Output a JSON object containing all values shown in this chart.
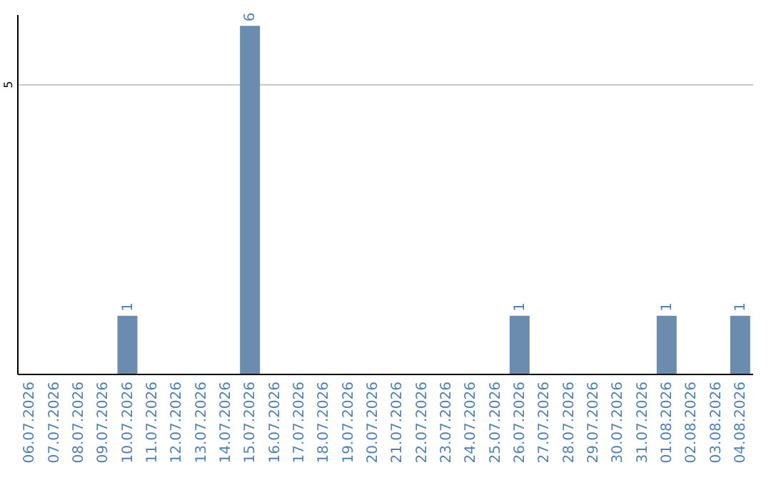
{
  "chart_data": {
    "type": "bar",
    "categories": [
      "06.07.2026",
      "07.07.2026",
      "08.07.2026",
      "09.07.2026",
      "10.07.2026",
      "11.07.2026",
      "12.07.2026",
      "13.07.2026",
      "14.07.2026",
      "15.07.2026",
      "16.07.2026",
      "17.07.2026",
      "18.07.2026",
      "19.07.2026",
      "20.07.2026",
      "21.07.2026",
      "22.07.2026",
      "23.07.2026",
      "24.07.2026",
      "25.07.2026",
      "26.07.2026",
      "27.07.2026",
      "28.07.2026",
      "29.07.2026",
      "30.07.2026",
      "31.07.2026",
      "01.08.2026",
      "02.08.2026",
      "03.08.2026",
      "04.08.2026"
    ],
    "values": [
      0,
      0,
      0,
      0,
      1,
      0,
      0,
      0,
      0,
      6,
      0,
      0,
      0,
      0,
      0,
      0,
      0,
      0,
      0,
      0,
      1,
      0,
      0,
      0,
      0,
      0,
      1,
      0,
      0,
      1
    ],
    "value_labels": [
      null,
      null,
      null,
      null,
      "1",
      null,
      null,
      null,
      null,
      "6",
      null,
      null,
      null,
      null,
      null,
      null,
      null,
      null,
      null,
      null,
      "1",
      null,
      null,
      null,
      null,
      null,
      "1",
      null,
      null,
      "1"
    ],
    "color": "#6b8cae",
    "ylim": [
      0,
      6.2
    ],
    "yticks": [
      5
    ],
    "grid": "y"
  }
}
